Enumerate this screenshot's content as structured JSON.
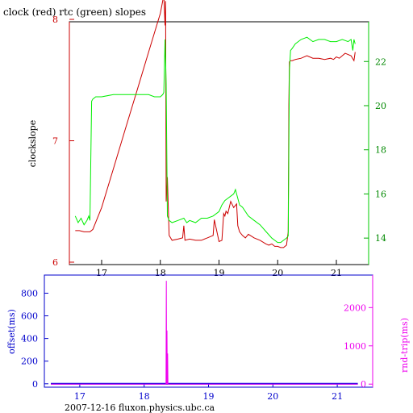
{
  "title": "clock (red) rtc (green) slopes",
  "footer": "2007-12-16 fluxon.physics.ubc.ca",
  "colors": {
    "clock": "#cc0000",
    "rtc": "#00ee00",
    "offset": "#0000dd",
    "rnd_trip": "#ee00ee",
    "frame": "#000000"
  },
  "chart_data": [
    {
      "type": "line",
      "title": "clock (red) rtc (green) slopes",
      "x_ticks": [
        17,
        18,
        19,
        20,
        21
      ],
      "xlim": [
        16.45,
        21.55
      ],
      "ylabel": "clockslope",
      "ylim": [
        5.98,
        7.98
      ],
      "y_ticks": [
        6,
        7,
        8
      ],
      "y2lim": [
        12.8,
        23.8
      ],
      "y2_ticks": [
        14,
        16,
        18,
        20,
        22
      ],
      "grid": false,
      "series": [
        {
          "name": "clock",
          "axis": "left",
          "color": "#cc0000",
          "x": [
            16.55,
            16.62,
            16.7,
            16.8,
            16.85,
            17.0,
            17.2,
            17.4,
            17.6,
            17.8,
            18.0,
            18.06,
            18.08,
            18.09,
            18.1,
            18.12,
            18.15,
            18.2,
            18.3,
            18.38,
            18.4,
            18.42,
            18.5,
            18.6,
            18.7,
            18.8,
            18.9,
            18.92,
            19.0,
            19.05,
            19.08,
            19.1,
            19.12,
            19.15,
            19.2,
            19.25,
            19.3,
            19.32,
            19.35,
            19.4,
            19.45,
            19.5,
            19.6,
            19.7,
            19.8,
            19.85,
            19.9,
            19.95,
            20.0,
            20.05,
            20.1,
            20.15,
            20.18,
            20.19,
            20.2,
            20.22,
            20.25,
            20.3,
            20.4,
            20.5,
            20.6,
            20.7,
            20.8,
            20.9,
            20.95,
            21.0,
            21.05,
            21.1,
            21.15,
            21.2,
            21.25,
            21.3,
            21.32
          ],
          "y": [
            6.26,
            6.26,
            6.25,
            6.25,
            6.27,
            6.45,
            6.77,
            7.09,
            7.41,
            7.73,
            8.05,
            8.2,
            7.95,
            8.15,
            6.5,
            6.7,
            6.22,
            6.18,
            6.19,
            6.2,
            6.3,
            6.18,
            6.19,
            6.18,
            6.18,
            6.2,
            6.22,
            6.35,
            6.17,
            6.18,
            6.4,
            6.38,
            6.42,
            6.4,
            6.5,
            6.45,
            6.48,
            6.3,
            6.25,
            6.22,
            6.2,
            6.23,
            6.2,
            6.18,
            6.15,
            6.14,
            6.15,
            6.13,
            6.13,
            6.12,
            6.12,
            6.14,
            6.25,
            7.3,
            7.65,
            7.66,
            7.66,
            7.67,
            7.68,
            7.7,
            7.68,
            7.68,
            7.67,
            7.68,
            7.67,
            7.69,
            7.68,
            7.7,
            7.72,
            7.71,
            7.7,
            7.66,
            7.73
          ]
        },
        {
          "name": "rtc",
          "axis": "right",
          "color": "#00ee00",
          "x": [
            16.55,
            16.6,
            16.65,
            16.7,
            16.75,
            16.78,
            16.8,
            16.83,
            16.85,
            16.9,
            17.0,
            17.2,
            17.4,
            17.6,
            17.8,
            17.9,
            18.0,
            18.04,
            18.06,
            18.08,
            18.1,
            18.12,
            18.15,
            18.2,
            18.3,
            18.4,
            18.45,
            18.5,
            18.6,
            18.7,
            18.8,
            18.9,
            19.0,
            19.05,
            19.1,
            19.15,
            19.2,
            19.25,
            19.28,
            19.3,
            19.32,
            19.35,
            19.4,
            19.5,
            19.6,
            19.7,
            19.8,
            19.9,
            19.95,
            20.0,
            20.05,
            20.1,
            20.15,
            20.18,
            20.2,
            20.22,
            20.25,
            20.3,
            20.4,
            20.5,
            20.6,
            20.7,
            20.8,
            20.9,
            21.0,
            21.1,
            21.2,
            21.25,
            21.28,
            21.3,
            21.32
          ],
          "y": [
            15.0,
            14.7,
            14.9,
            14.6,
            14.8,
            15.0,
            14.8,
            20.2,
            20.3,
            20.4,
            20.4,
            20.5,
            20.5,
            20.5,
            20.5,
            20.4,
            20.4,
            20.5,
            20.6,
            23.0,
            21.0,
            15.0,
            14.8,
            14.7,
            14.8,
            14.9,
            14.7,
            14.8,
            14.7,
            14.9,
            14.9,
            15.0,
            15.2,
            15.5,
            15.7,
            15.8,
            15.9,
            16.0,
            16.2,
            16.0,
            15.8,
            15.5,
            15.4,
            15.0,
            14.8,
            14.6,
            14.3,
            14.0,
            13.9,
            13.8,
            13.8,
            13.9,
            14.0,
            14.1,
            21.6,
            22.5,
            22.6,
            22.8,
            23.0,
            23.1,
            22.9,
            23.0,
            23.0,
            22.9,
            22.9,
            23.0,
            22.9,
            23.0,
            22.5,
            23.0,
            22.8
          ]
        }
      ]
    },
    {
      "type": "line",
      "x_ticks": [
        17,
        18,
        19,
        20,
        21
      ],
      "xlim": [
        16.45,
        21.55
      ],
      "ylabel": "offset(ms)",
      "ylim": [
        -30,
        960
      ],
      "y_ticks": [
        0,
        200,
        400,
        600,
        800
      ],
      "y2label": "rnd-trip(ms)",
      "y2lim": [
        -80,
        2850
      ],
      "y2_ticks": [
        0,
        1000,
        2000
      ],
      "grid": false,
      "series": [
        {
          "name": "offset",
          "axis": "left",
          "color": "#0000dd",
          "x": [
            16.55,
            18.35,
            18.36,
            18.37,
            18.38,
            21.32
          ],
          "y": [
            0,
            0,
            0,
            0,
            0,
            0
          ]
        },
        {
          "name": "rnd-trip",
          "axis": "right",
          "color": "#ee00ee",
          "x": [
            16.55,
            18.34,
            18.345,
            18.35,
            18.355,
            18.36,
            18.365,
            18.37,
            21.32
          ],
          "y": [
            0,
            0,
            2700,
            0,
            1400,
            0,
            800,
            0,
            0
          ]
        }
      ]
    }
  ]
}
